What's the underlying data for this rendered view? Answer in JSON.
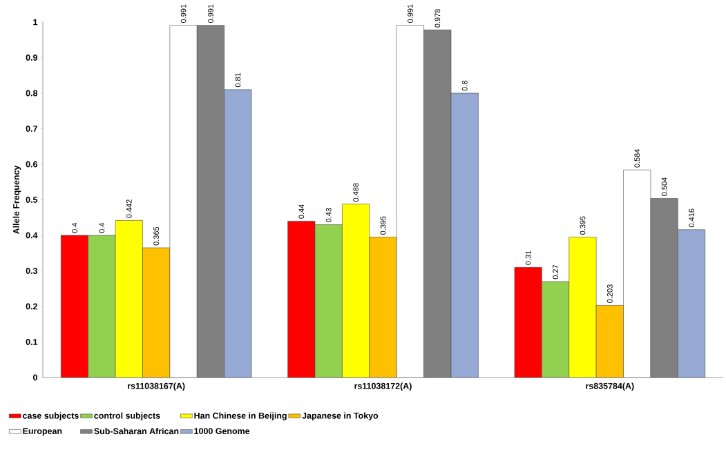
{
  "chart_data": {
    "type": "bar",
    "ylabel": "Allele Frequency",
    "categories": [
      "rs11038167(A)",
      "rs11038172(A)",
      "rs835784(A)"
    ],
    "series": [
      {
        "name": "case subjects",
        "color": "#ff0000",
        "values": [
          0.4,
          0.44,
          0.31
        ]
      },
      {
        "name": "control subjects",
        "color": "#92d050",
        "values": [
          0.4,
          0.43,
          0.27
        ]
      },
      {
        "name": "Han Chinese in Beijing",
        "color": "#ffff00",
        "values": [
          0.442,
          0.488,
          0.395
        ]
      },
      {
        "name": "Japanese in Tokyo",
        "color": "#ffc000",
        "values": [
          0.365,
          0.395,
          0.203
        ]
      },
      {
        "name": "European",
        "color": "#ffffff",
        "values": [
          0.991,
          0.991,
          0.584
        ]
      },
      {
        "name": "Sub-Saharan African",
        "color": "#808080",
        "values": [
          0.991,
          0.978,
          0.504
        ]
      },
      {
        "name": "1000 Genome",
        "color": "#95a9d3",
        "values": [
          0.81,
          0.8,
          0.416
        ]
      }
    ],
    "ylim": [
      0,
      1
    ],
    "yticks": [
      0,
      0.1,
      0.2,
      0.3,
      0.4,
      0.5,
      0.6,
      0.7,
      0.8,
      0.9,
      1
    ],
    "data_labels": true,
    "legend": "bottom",
    "grid": false
  }
}
